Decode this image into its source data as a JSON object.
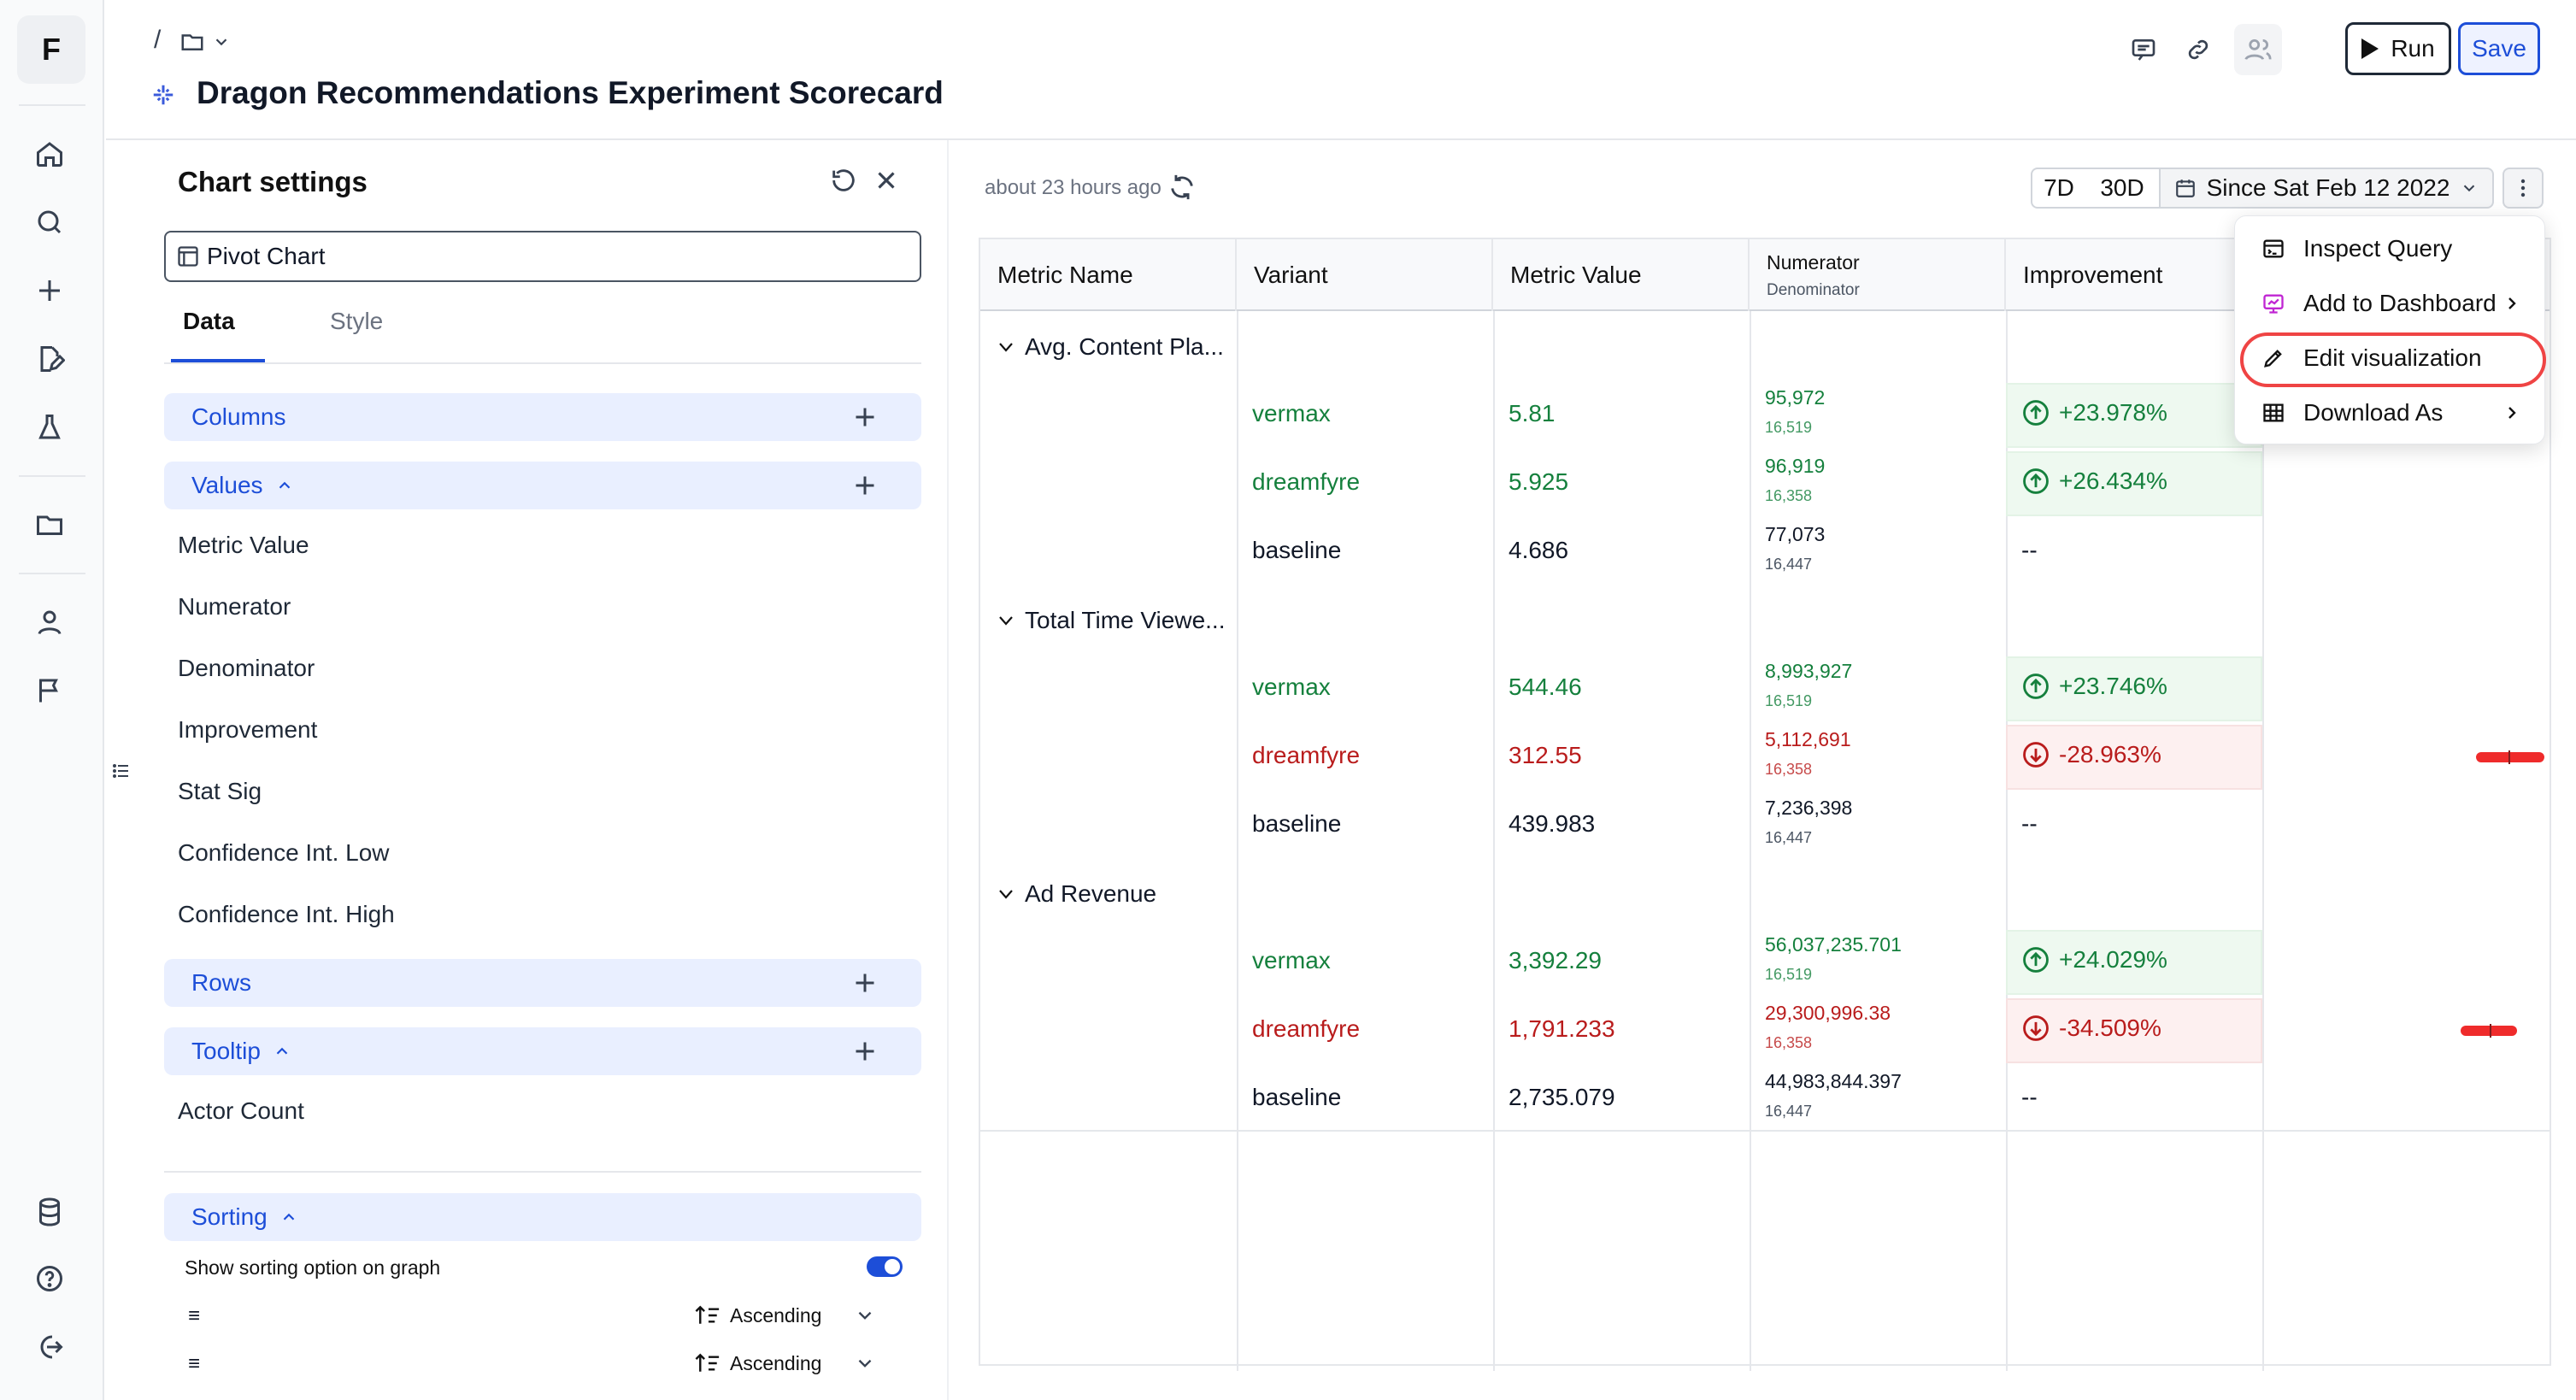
{
  "app": {
    "logo_letter": "F"
  },
  "header": {
    "breadcrumb_separator": "/",
    "title": "Dragon Recommendations Experiment Scorecard",
    "run_label": "Run",
    "save_label": "Save"
  },
  "settings": {
    "title": "Chart settings",
    "chart_type": "Pivot Chart",
    "tabs": [
      {
        "label": "Data",
        "active": true
      },
      {
        "label": "Style",
        "active": false
      }
    ],
    "columns_label": "Columns",
    "values_label": "Values",
    "values_items": [
      "Metric Value",
      "Numerator",
      "Denominator",
      "Improvement",
      "Stat Sig",
      "Confidence Int. Low",
      "Confidence Int. High"
    ],
    "rows_label": "Rows",
    "tooltip_label": "Tooltip",
    "tooltip_items": [
      "Actor Count"
    ],
    "sorting_label": "Sorting",
    "sorting_toggle_label": "Show sorting option on graph",
    "sorting_toggle_on": true,
    "sort_rows": [
      {
        "handle": "≡",
        "order": "Ascending"
      },
      {
        "handle": "≡",
        "order": "Ascending"
      }
    ]
  },
  "toolbar": {
    "last_updated": "about 23 hours ago",
    "ranges": [
      "7D",
      "30D"
    ],
    "date_range": "Since Sat Feb 12 2022"
  },
  "table": {
    "headers": {
      "metric_name": "Metric Name",
      "variant": "Variant",
      "metric_value": "Metric Value",
      "numerator": "Numerator",
      "denominator": "Denominator",
      "improvement": "Improvement"
    },
    "groups": [
      {
        "metric": "Avg. Content Pla...",
        "rows": [
          {
            "variant": "vermax",
            "value": "5.81",
            "numerator": "95,972",
            "denominator": "16,519",
            "improvement": "+23.978%",
            "status": "positive"
          },
          {
            "variant": "dreamfyre",
            "value": "5.925",
            "numerator": "96,919",
            "denominator": "16,358",
            "improvement": "+26.434%",
            "status": "positive"
          },
          {
            "variant": "baseline",
            "value": "4.686",
            "numerator": "77,073",
            "denominator": "16,447",
            "improvement": "--",
            "status": "neutral"
          }
        ]
      },
      {
        "metric": "Total Time Viewe...",
        "rows": [
          {
            "variant": "vermax",
            "value": "544.46",
            "numerator": "8,993,927",
            "denominator": "16,519",
            "improvement": "+23.746%",
            "status": "positive"
          },
          {
            "variant": "dreamfyre",
            "value": "312.55",
            "numerator": "5,112,691",
            "denominator": "16,358",
            "improvement": "-28.963%",
            "status": "negative"
          },
          {
            "variant": "baseline",
            "value": "439.983",
            "numerator": "7,236,398",
            "denominator": "16,447",
            "improvement": "--",
            "status": "neutral"
          }
        ]
      },
      {
        "metric": "Ad Revenue",
        "rows": [
          {
            "variant": "vermax",
            "value": "3,392.29",
            "numerator": "56,037,235.701",
            "denominator": "16,519",
            "improvement": "+24.029%",
            "status": "positive"
          },
          {
            "variant": "dreamfyre",
            "value": "1,791.233",
            "numerator": "29,300,996.38",
            "denominator": "16,358",
            "improvement": "-34.509%",
            "status": "negative"
          },
          {
            "variant": "baseline",
            "value": "2,735.079",
            "numerator": "44,983,844.397",
            "denominator": "16,447",
            "improvement": "--",
            "status": "neutral"
          }
        ]
      }
    ]
  },
  "menu": {
    "items": [
      {
        "label": "Inspect Query",
        "icon": "query-icon",
        "submenu": false
      },
      {
        "label": "Add to Dashboard",
        "icon": "dashboard-icon",
        "submenu": true
      },
      {
        "label": "Edit visualization",
        "icon": "pencil-icon",
        "submenu": false,
        "highlighted": true
      },
      {
        "label": "Download As",
        "icon": "table-icon",
        "submenu": true
      }
    ]
  },
  "colors": {
    "accent": "#1d4ed8",
    "positive": "#15803d",
    "negative": "#b91c1c",
    "highlight_ring": "#ef4444"
  }
}
